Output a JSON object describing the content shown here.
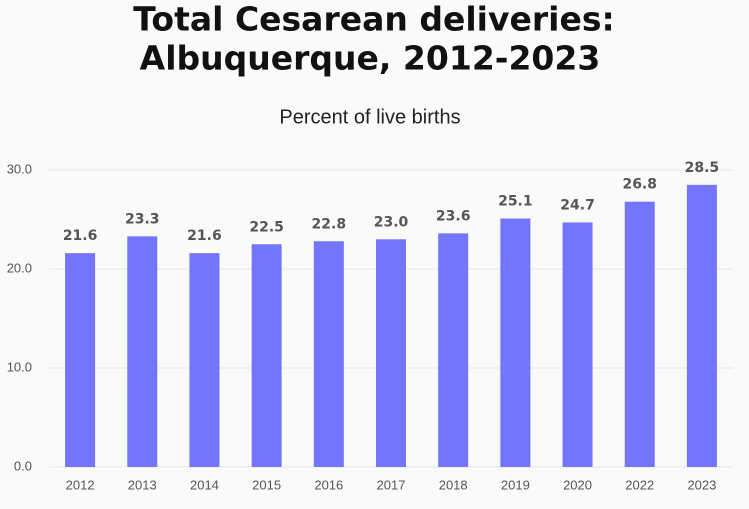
{
  "chart_data": {
    "type": "bar",
    "title": [
      "Total Cesarean deliveries:",
      "Albuquerque, 2012-2023"
    ],
    "subtitle": "Percent of live births",
    "categories": [
      "2012",
      "2013",
      "2014",
      "2015",
      "2016",
      "2017",
      "2018",
      "2019",
      "2020",
      "2022",
      "2023"
    ],
    "values": [
      21.6,
      23.3,
      21.6,
      22.5,
      22.8,
      23.0,
      23.6,
      25.1,
      24.7,
      26.8,
      28.5
    ],
    "value_labels": [
      "21.6",
      "23.3",
      "21.6",
      "22.5",
      "22.8",
      "23.0",
      "23.6",
      "25.1",
      "24.7",
      "26.8",
      "28.5"
    ],
    "color": "#7375fb",
    "ylim": [
      0,
      30
    ],
    "yticks": [
      {
        "value": 0,
        "label": "0.0"
      },
      {
        "value": 10,
        "label": "10.0"
      },
      {
        "value": 20,
        "label": "20.0"
      },
      {
        "value": 30,
        "label": "30.0"
      }
    ],
    "grid": true
  }
}
